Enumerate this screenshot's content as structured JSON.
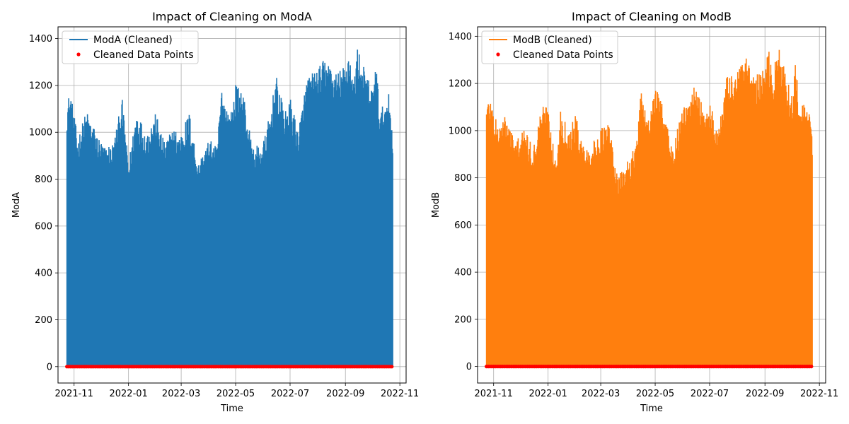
{
  "chart_data": [
    {
      "type": "line",
      "title": "Impact of Cleaning on ModA",
      "xlabel": "Time",
      "ylabel": "ModA",
      "xlim": [
        "2021-10-14",
        "2022-11-08"
      ],
      "ylim": [
        -70,
        1450
      ],
      "x_ticks": [
        "2021-11",
        "2022-01",
        "2022-03",
        "2022-05",
        "2022-07",
        "2022-09",
        "2022-11"
      ],
      "y_ticks": [
        0,
        200,
        400,
        600,
        800,
        1000,
        1200,
        1400
      ],
      "grid": true,
      "legend_position": "top-left",
      "series": [
        {
          "name": "ModA (Cleaned)",
          "color": "#1f77b4",
          "kind": "line",
          "x_range": [
            "2021-10-24",
            "2022-10-24"
          ],
          "daily_peak_envelope": [
            [
              "2021-10-24",
              1140
            ],
            [
              "2021-10-28",
              1175
            ],
            [
              "2021-11-05",
              980
            ],
            [
              "2021-11-15",
              1095
            ],
            [
              "2021-11-25",
              1010
            ],
            [
              "2021-12-05",
              940
            ],
            [
              "2021-12-15",
              960
            ],
            [
              "2021-12-25",
              1140
            ],
            [
              "2022-01-01",
              870
            ],
            [
              "2022-01-10",
              1105
            ],
            [
              "2022-01-20",
              1000
            ],
            [
              "2022-02-01",
              1085
            ],
            [
              "2022-02-10",
              960
            ],
            [
              "2022-02-20",
              1020
            ],
            [
              "2022-03-01",
              1000
            ],
            [
              "2022-03-10",
              1090
            ],
            [
              "2022-03-20",
              870
            ],
            [
              "2022-04-01",
              970
            ],
            [
              "2022-04-10",
              940
            ],
            [
              "2022-04-15",
              1195
            ],
            [
              "2022-04-25",
              1070
            ],
            [
              "2022-05-01",
              1205
            ],
            [
              "2022-05-10",
              1170
            ],
            [
              "2022-05-20",
              930
            ],
            [
              "2022-06-01",
              960
            ],
            [
              "2022-06-10",
              1105
            ],
            [
              "2022-06-15",
              1250
            ],
            [
              "2022-06-25",
              1080
            ],
            [
              "2022-07-01",
              1150
            ],
            [
              "2022-07-10",
              1010
            ],
            [
              "2022-07-20",
              1240
            ],
            [
              "2022-08-01",
              1270
            ],
            [
              "2022-08-10",
              1325
            ],
            [
              "2022-08-20",
              1250
            ],
            [
              "2022-09-01",
              1290
            ],
            [
              "2022-09-05",
              1375
            ],
            [
              "2022-09-10",
              1220
            ],
            [
              "2022-09-15",
              1380
            ],
            [
              "2022-09-20",
              1295
            ],
            [
              "2022-10-01",
              1190
            ],
            [
              "2022-10-05",
              1310
            ],
            [
              "2022-10-10",
              1090
            ],
            [
              "2022-10-20",
              1170
            ],
            [
              "2022-10-24",
              1010
            ]
          ],
          "baseline": 0
        },
        {
          "name": "Cleaned Data Points",
          "color": "#ff0000",
          "kind": "scatter",
          "x_range": [
            "2021-10-24",
            "2022-10-24"
          ],
          "y": 0
        }
      ]
    },
    {
      "type": "line",
      "title": "Impact of Cleaning on ModB",
      "xlabel": "Time",
      "ylabel": "ModB",
      "xlim": [
        "2021-10-14",
        "2022-11-08"
      ],
      "ylim": [
        -70,
        1440
      ],
      "x_ticks": [
        "2021-11",
        "2022-01",
        "2022-03",
        "2022-05",
        "2022-07",
        "2022-09",
        "2022-11"
      ],
      "y_ticks": [
        0,
        200,
        400,
        600,
        800,
        1000,
        1200,
        1400
      ],
      "grid": true,
      "legend_position": "top-left",
      "series": [
        {
          "name": "ModB (Cleaned)",
          "color": "#ff7f0e",
          "kind": "line",
          "x_range": [
            "2021-10-24",
            "2022-10-24"
          ],
          "daily_peak_envelope": [
            [
              "2021-10-24",
              1130
            ],
            [
              "2021-10-28",
              1155
            ],
            [
              "2021-11-05",
              1025
            ],
            [
              "2021-11-15",
              1070
            ],
            [
              "2021-11-25",
              960
            ],
            [
              "2021-12-05",
              1010
            ],
            [
              "2021-12-15",
              930
            ],
            [
              "2021-12-25",
              1110
            ],
            [
              "2022-01-01",
              1115
            ],
            [
              "2022-01-10",
              850
            ],
            [
              "2022-01-15",
              1090
            ],
            [
              "2022-01-25",
              1010
            ],
            [
              "2022-02-01",
              1070
            ],
            [
              "2022-02-10",
              930
            ],
            [
              "2022-02-20",
              950
            ],
            [
              "2022-03-01",
              1010
            ],
            [
              "2022-03-10",
              1045
            ],
            [
              "2022-03-20",
              800
            ],
            [
              "2022-04-01",
              880
            ],
            [
              "2022-04-10",
              960
            ],
            [
              "2022-04-15",
              1165
            ],
            [
              "2022-04-25",
              1050
            ],
            [
              "2022-05-01",
              1190
            ],
            [
              "2022-05-10",
              1125
            ],
            [
              "2022-05-20",
              920
            ],
            [
              "2022-06-01",
              1095
            ],
            [
              "2022-06-10",
              1135
            ],
            [
              "2022-06-15",
              1240
            ],
            [
              "2022-06-25",
              1060
            ],
            [
              "2022-07-01",
              1135
            ],
            [
              "2022-07-10",
              1000
            ],
            [
              "2022-07-20",
              1225
            ],
            [
              "2022-08-01",
              1265
            ],
            [
              "2022-08-10",
              1315
            ],
            [
              "2022-08-20",
              1235
            ],
            [
              "2022-09-01",
              1260
            ],
            [
              "2022-09-05",
              1360
            ],
            [
              "2022-09-10",
              1220
            ],
            [
              "2022-09-15",
              1370
            ],
            [
              "2022-09-20",
              1305
            ],
            [
              "2022-10-01",
              1150
            ],
            [
              "2022-10-05",
              1295
            ],
            [
              "2022-10-10",
              1100
            ],
            [
              "2022-10-20",
              1125
            ],
            [
              "2022-10-24",
              975
            ]
          ],
          "baseline": 0
        },
        {
          "name": "Cleaned Data Points",
          "color": "#ff0000",
          "kind": "scatter",
          "x_range": [
            "2021-10-24",
            "2022-10-24"
          ],
          "y": 0
        }
      ]
    }
  ]
}
